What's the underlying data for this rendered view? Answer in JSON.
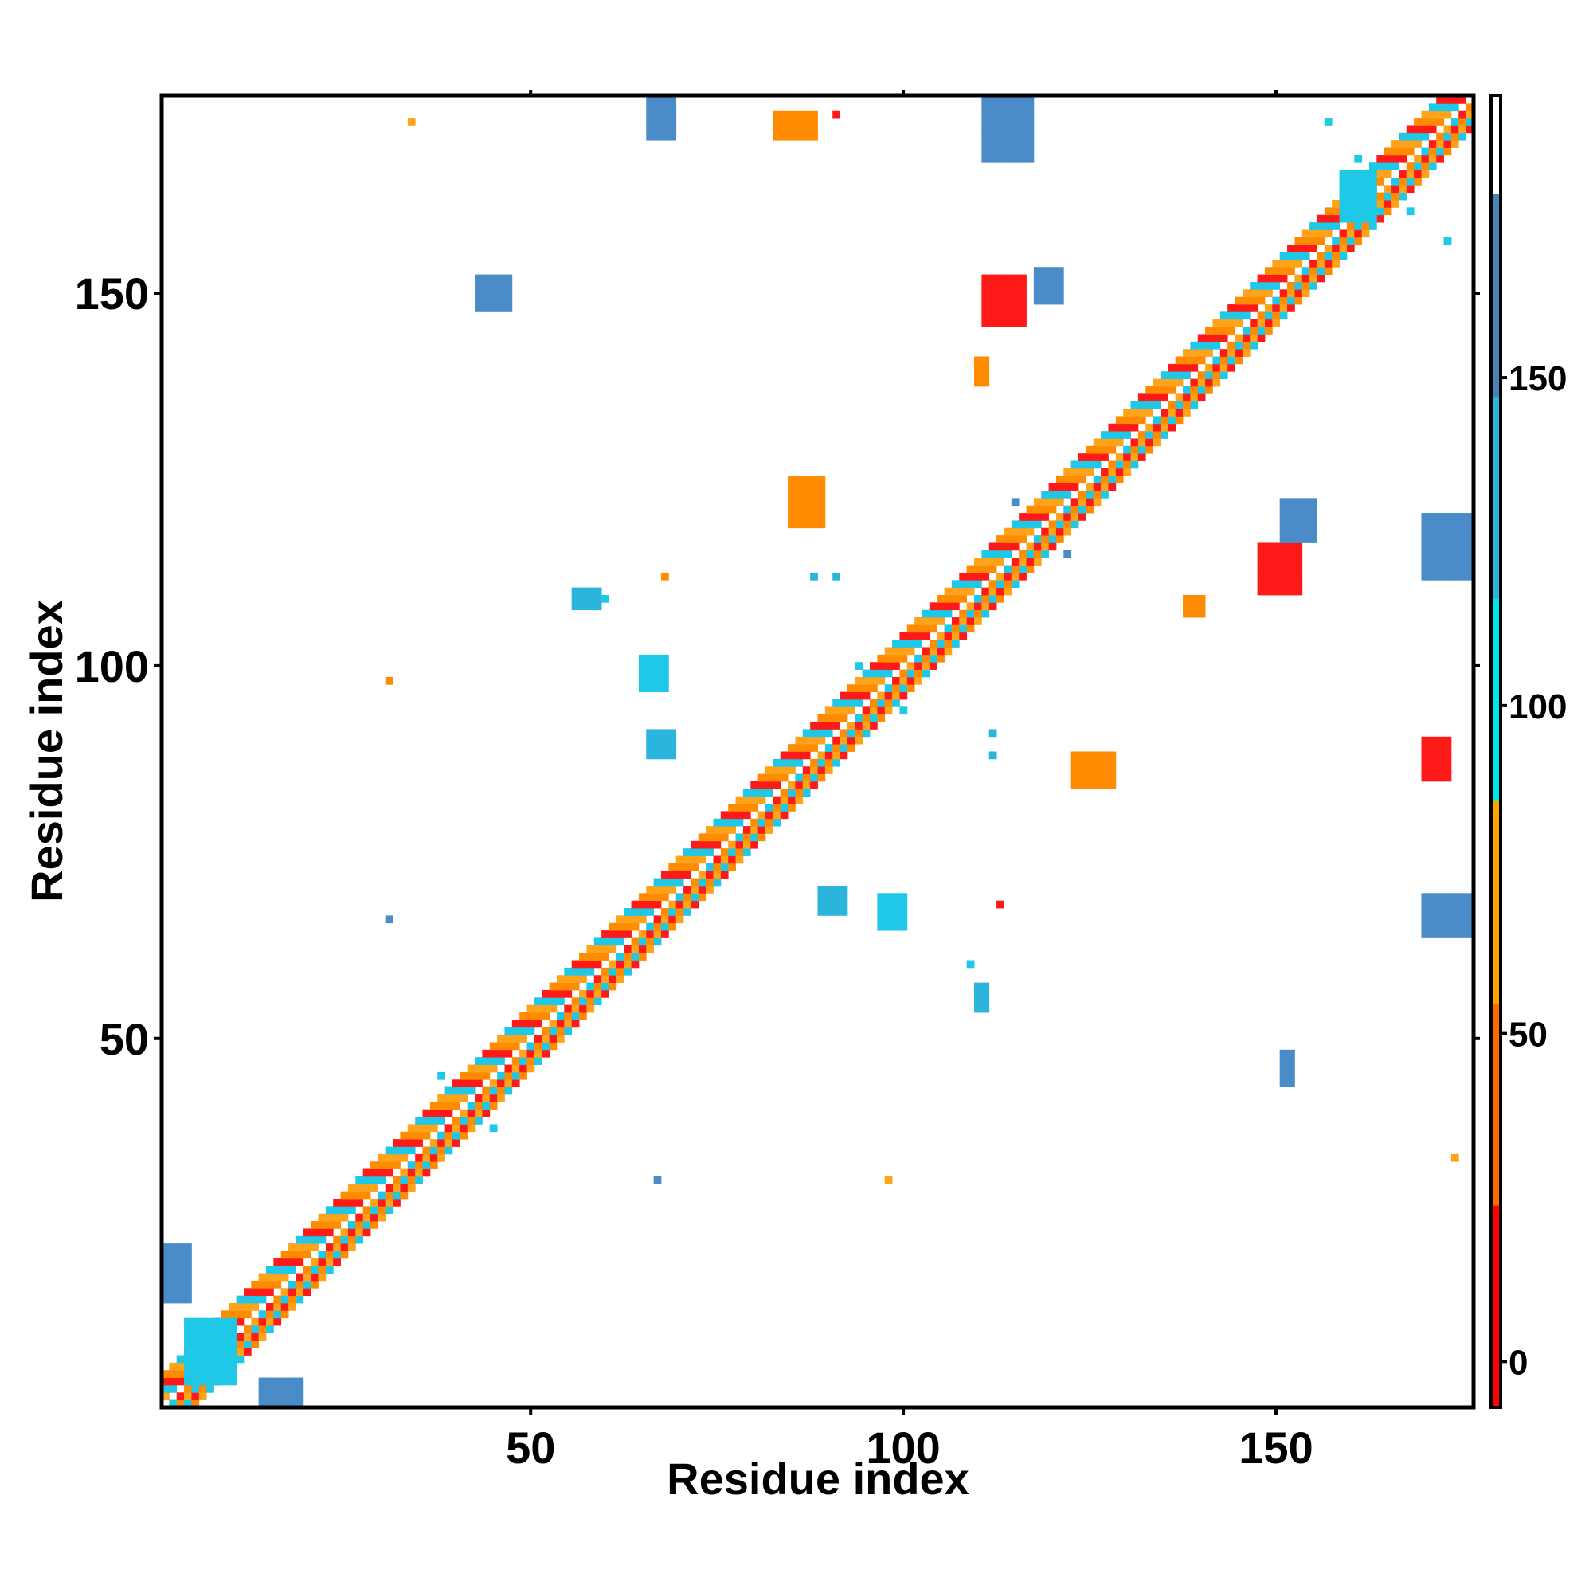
{
  "chart_data": {
    "type": "heatmap",
    "title": "",
    "xlabel": "Residue index",
    "ylabel": "Residue index",
    "xlim": [
      1,
      176
    ],
    "ylim": [
      1,
      176
    ],
    "x_ticks": [
      50,
      100,
      150
    ],
    "y_ticks": [
      50,
      100,
      150
    ],
    "grid": false,
    "legend": "right",
    "colorbar": {
      "ticks": [
        0,
        50,
        100,
        150
      ],
      "range": [
        -7,
        193
      ],
      "bands": [
        {
          "from": -7,
          "to": 28,
          "color": "#ff1a1a"
        },
        {
          "from": 28,
          "to": 78,
          "color": "#ff8c00"
        },
        {
          "from": 78,
          "to": 178,
          "color": "#1ec8e6"
        },
        {
          "from": 178,
          "to": 193,
          "color": "#ffffff"
        }
      ],
      "gradient": [
        "#ff0000",
        "#ff6a00",
        "#ffa500",
        "#00e5ee",
        "#2bb4dc",
        "#4682b4"
      ]
    },
    "diagonal": {
      "band_width": 4,
      "pattern": [
        "#ff1a1a",
        "#ff8c00",
        "#ffa31a",
        "#1ec8e6"
      ]
    },
    "blobs": [
      {
        "x": [
          66,
          69
        ],
        "y": [
          171,
          176
        ],
        "color": "#4a8cc8"
      },
      {
        "x": [
          111,
          117
        ],
        "y": [
          168,
          176
        ],
        "color": "#4a8cc8"
      },
      {
        "x": [
          111,
          116
        ],
        "y": [
          146,
          152
        ],
        "color": "#ff1a1a"
      },
      {
        "x": [
          148,
          153
        ],
        "y": [
          110,
          116
        ],
        "color": "#ff1a1a"
      },
      {
        "x": [
          170,
          176
        ],
        "y": [
          112,
          120
        ],
        "color": "#4a8cc8"
      },
      {
        "x": [
          170,
          176
        ],
        "y": [
          64,
          69
        ],
        "color": "#4a8cc8"
      },
      {
        "x": [
          159,
          163
        ],
        "y": [
          160,
          166
        ],
        "color": "#1ec8e6"
      },
      {
        "x": [
          4,
          10
        ],
        "y": [
          4,
          12
        ],
        "color": "#1ec8e6"
      },
      {
        "x": [
          65,
          68
        ],
        "y": [
          97,
          101
        ],
        "color": "#1ec8e6"
      },
      {
        "x": [
          97,
          100
        ],
        "y": [
          65,
          69
        ],
        "color": "#1ec8e6"
      },
      {
        "x": [
          110,
          111
        ],
        "y": [
          54,
          57
        ],
        "color": "#2bb4dc"
      },
      {
        "x": [
          56,
          59
        ],
        "y": [
          108,
          110
        ],
        "color": "#2bb4dc"
      },
      {
        "x": [
          85,
          89
        ],
        "y": [
          119,
          125
        ],
        "color": "#ff8c00"
      },
      {
        "x": [
          123,
          128
        ],
        "y": [
          84,
          88
        ],
        "color": "#ff8c00"
      },
      {
        "x": [
          110,
          111
        ],
        "y": [
          138,
          141
        ],
        "color": "#ff8c00"
      },
      {
        "x": [
          138,
          140
        ],
        "y": [
          107,
          109
        ],
        "color": "#ff8c00"
      },
      {
        "x": [
          83,
          88
        ],
        "y": [
          171,
          174
        ],
        "color": "#ff8c00"
      },
      {
        "x": [
          170,
          173
        ],
        "y": [
          85,
          90
        ],
        "color": "#ff1a1a"
      },
      {
        "x": [
          151,
          152
        ],
        "y": [
          44,
          48
        ],
        "color": "#4a8cc8"
      },
      {
        "x": [
          43,
          47
        ],
        "y": [
          148,
          152
        ],
        "color": "#4a8cc8"
      },
      {
        "x": [
          89,
          92
        ],
        "y": [
          67,
          70
        ],
        "color": "#2bb4dc"
      },
      {
        "x": [
          66,
          69
        ],
        "y": [
          88,
          91
        ],
        "color": "#2bb4dc"
      },
      {
        "x": [
          118,
          121
        ],
        "y": [
          149,
          153
        ],
        "color": "#4a8cc8"
      },
      {
        "x": [
          151,
          155
        ],
        "y": [
          117,
          122
        ],
        "color": "#4a8cc8"
      },
      {
        "x": [
          14,
          19
        ],
        "y": [
          1,
          4
        ],
        "color": "#4a8cc8"
      },
      {
        "x": [
          1,
          4
        ],
        "y": [
          15,
          22
        ],
        "color": "#4a8cc8"
      }
    ],
    "points": [
      {
        "x": 34,
        "y": 173,
        "color": "#ffa31a"
      },
      {
        "x": 91,
        "y": 174,
        "color": "#ff1a1a"
      },
      {
        "x": 31,
        "y": 98,
        "color": "#ff8c00"
      },
      {
        "x": 31,
        "y": 66,
        "color": "#4a8cc8"
      },
      {
        "x": 67,
        "y": 31,
        "color": "#4a8cc8"
      },
      {
        "x": 98,
        "y": 31,
        "color": "#ffa31a"
      },
      {
        "x": 174,
        "y": 34,
        "color": "#ffa31a"
      },
      {
        "x": 68,
        "y": 112,
        "color": "#ff8c00"
      },
      {
        "x": 113,
        "y": 68,
        "color": "#ff1a1a"
      },
      {
        "x": 88,
        "y": 112,
        "color": "#2bb4dc"
      },
      {
        "x": 91,
        "y": 112,
        "color": "#2bb4dc"
      },
      {
        "x": 112,
        "y": 91,
        "color": "#2bb4dc"
      },
      {
        "x": 112,
        "y": 88,
        "color": "#2bb4dc"
      },
      {
        "x": 122,
        "y": 115,
        "color": "#4a8cc8"
      },
      {
        "x": 115,
        "y": 122,
        "color": "#4a8cc8"
      },
      {
        "x": 45,
        "y": 38,
        "color": "#1ec8e6"
      },
      {
        "x": 38,
        "y": 45,
        "color": "#1ec8e6"
      },
      {
        "x": 100,
        "y": 94,
        "color": "#1ec8e6"
      },
      {
        "x": 94,
        "y": 100,
        "color": "#1ec8e6"
      },
      {
        "x": 60,
        "y": 109,
        "color": "#1ec8e6"
      },
      {
        "x": 109,
        "y": 60,
        "color": "#1ec8e6"
      },
      {
        "x": 157,
        "y": 173,
        "color": "#1ec8e6"
      },
      {
        "x": 173,
        "y": 157,
        "color": "#1ec8e6"
      },
      {
        "x": 168,
        "y": 161,
        "color": "#1ec8e6"
      },
      {
        "x": 161,
        "y": 168,
        "color": "#1ec8e6"
      }
    ]
  }
}
